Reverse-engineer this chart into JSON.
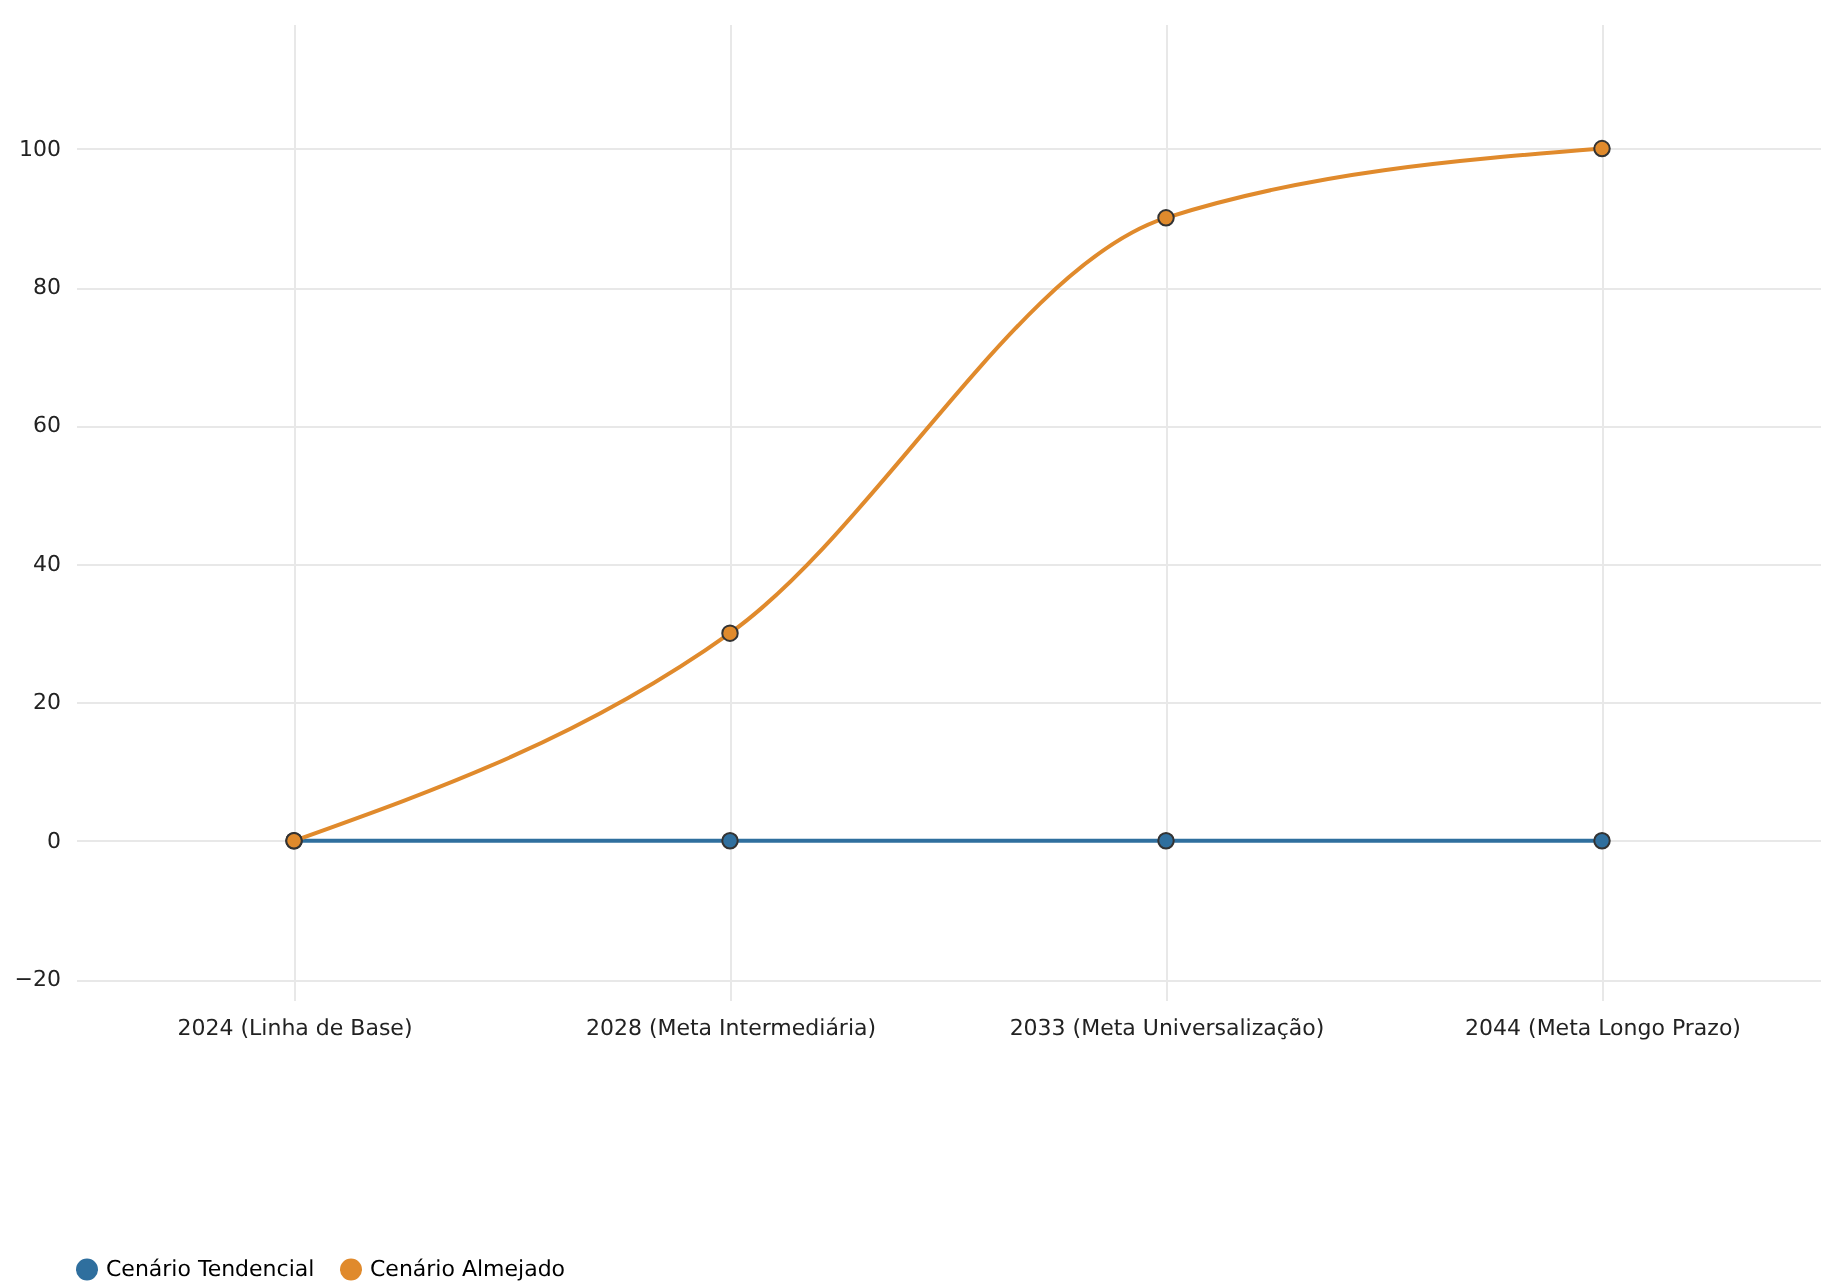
{
  "chart_data": {
    "type": "line",
    "categories": [
      "2024 (Linha de Base)",
      "2028 (Meta Intermediária)",
      "2033 (Meta Universalização)",
      "2044 (Meta Longo Prazo)"
    ],
    "series": [
      {
        "name": "Cenário Tendencial",
        "color": "#2f6f9e",
        "values": [
          0,
          0,
          0,
          0
        ]
      },
      {
        "name": "Cenário Almejado",
        "color": "#e08a2c",
        "values": [
          0,
          30,
          90,
          100
        ]
      }
    ],
    "ylim": [
      -23,
      118
    ],
    "yticks": [
      -20,
      0,
      20,
      40,
      60,
      80,
      100
    ],
    "grid": true,
    "legend": "bottom",
    "marker": "circle",
    "line_style": "solid"
  }
}
